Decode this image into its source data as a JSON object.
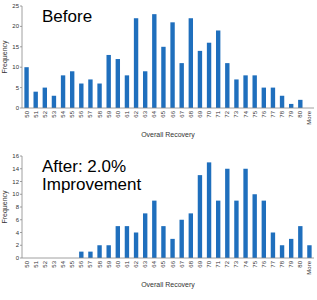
{
  "chart_data": [
    {
      "type": "bar",
      "title": "Before",
      "x_label": "Overall Recovery",
      "y_label": "Frequency",
      "categories": [
        "50",
        "51",
        "52",
        "53",
        "54",
        "55",
        "56",
        "57",
        "58",
        "59",
        "60",
        "61",
        "62",
        "63",
        "64",
        "65",
        "66",
        "67",
        "68",
        "69",
        "70",
        "71",
        "72",
        "73",
        "74",
        "75",
        "76",
        "77",
        "78",
        "79",
        "80",
        "More"
      ],
      "values": [
        10,
        4,
        5,
        3,
        8,
        9,
        6,
        7,
        6,
        13,
        12,
        8,
        22,
        9,
        23,
        15,
        21,
        11,
        22,
        14,
        16,
        19,
        11,
        7,
        8,
        8,
        5,
        5,
        3,
        1,
        2,
        0
      ],
      "color": "#1f6fbd",
      "ylim": [
        0,
        25
      ],
      "yticks": [
        0,
        5,
        10,
        15,
        20,
        25
      ]
    },
    {
      "type": "bar",
      "title": "After: 2.0% Improvement",
      "x_label": "Overall Recovery",
      "y_label": "Frequency",
      "categories": [
        "50",
        "51",
        "52",
        "53",
        "54",
        "55",
        "56",
        "57",
        "58",
        "59",
        "60",
        "61",
        "62",
        "63",
        "64",
        "65",
        "66",
        "67",
        "68",
        "69",
        "70",
        "71",
        "72",
        "73",
        "74",
        "75",
        "76",
        "77",
        "78",
        "79",
        "80",
        "More"
      ],
      "values": [
        0,
        0,
        0,
        0,
        0,
        0,
        1,
        1,
        2,
        2,
        5,
        5,
        4,
        7,
        9,
        5,
        3,
        6,
        7,
        13,
        15,
        9,
        14,
        9,
        14,
        10,
        9,
        4,
        2,
        3,
        5,
        2
      ],
      "color": "#1f6fbd",
      "ylim": [
        0,
        16
      ],
      "yticks": [
        0,
        2,
        4,
        6,
        8,
        10,
        12,
        14,
        16
      ]
    }
  ]
}
